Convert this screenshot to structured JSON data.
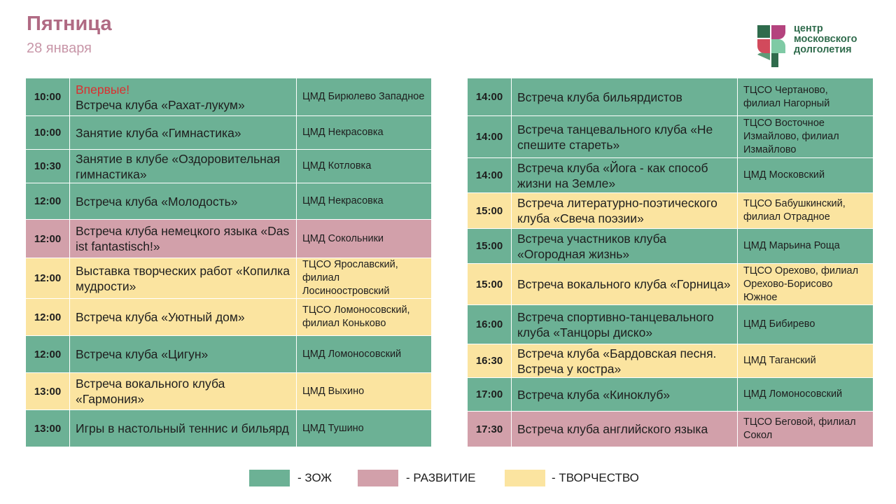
{
  "header": {
    "day": "Пятница",
    "date": "28 января"
  },
  "logo": {
    "line1": "центр",
    "line2": "московского",
    "line3": "долголетия"
  },
  "colors": {
    "zozh": "#6cb195",
    "razv": "#d2a0aa",
    "tvor": "#fbe4a0"
  },
  "left_rows": [
    {
      "time": "10:00",
      "badge": "Впервые!",
      "title": "Встреча клуба «Рахат-лукум»",
      "place": "ЦМД Бирюлево Западное",
      "cat": "zozh"
    },
    {
      "time": "10:00",
      "title": "Занятие клуба «Гимнастика»",
      "place": "ЦМД Некрасовка",
      "cat": "zozh"
    },
    {
      "time": "10:30",
      "title": "Занятие  в клубе «Оздоровительная гимнастика»",
      "place": "ЦМД Котловка",
      "cat": "zozh"
    },
    {
      "time": "12:00",
      "title": "Встреча клуба «Молодость»",
      "place": "ЦМД Некрасовка",
      "cat": "zozh"
    },
    {
      "time": "12:00",
      "title": "Встреча клуба немецкого языка «Das ist fantastisch!»",
      "place": "ЦМД Сокольники",
      "cat": "razv"
    },
    {
      "time": "12:00",
      "title": "Выставка творческих работ «Копилка мудрости»",
      "place": "ТЦСО Ярославский, филиал Лосиноостровский",
      "cat": "tvor"
    },
    {
      "time": "12:00",
      "title": "Встреча клуба «Уютный дом»",
      "place": "ТЦСО Ломоносовский, филиал Коньково",
      "cat": "tvor"
    },
    {
      "time": "12:00",
      "title": "Встреча клуба «Цигун»",
      "place": "ЦМД Ломоносовский",
      "cat": "zozh"
    },
    {
      "time": "13:00",
      "title": "Встреча вокального клуба «Гармония»",
      "place": "ЦМД Выхино",
      "cat": "tvor"
    },
    {
      "time": "13:00",
      "title": "Игры в настольный теннис и бильярд",
      "place": "ЦМД Тушино",
      "cat": "zozh"
    }
  ],
  "right_rows": [
    {
      "time": "14:00",
      "title": "Встреча клуба бильярдистов",
      "place": "ТЦСО Чертаново, филиал Нагорный",
      "cat": "zozh"
    },
    {
      "time": "14:00",
      "title": "Встреча танцевального клуба «Не спешите стареть»",
      "place": "ТЦСО Восточное Измайлово, филиал Измайлово",
      "cat": "zozh"
    },
    {
      "time": "14:00",
      "title": "Встреча клуба «Йога - как способ жизни на Земле»",
      "place": "ЦМД Московский",
      "cat": "zozh"
    },
    {
      "time": "15:00",
      "title": "Встреча литературно-поэтического клуба «Свеча поэзии»",
      "place": "ТЦСО Бабушкинский, филиал Отрадное",
      "cat": "tvor"
    },
    {
      "time": "15:00",
      "title": "Встреча участников клуба «Огородная жизнь»",
      "place": "ЦМД Марьина Роща",
      "cat": "zozh"
    },
    {
      "time": "15:00",
      "title": "Встреча вокального клуба «Горница»",
      "place": "ТЦСО Орехово, филиал Орехово-Борисово Южное",
      "cat": "tvor"
    },
    {
      "time": "16:00",
      "title": "Встреча спортивно-танцевального клуба «Танцоры диско»",
      "place": "ЦМД Бибирево",
      "cat": "zozh"
    },
    {
      "time": "16:30",
      "title": "Встреча клуба «Бардовская песня. Встреча у костра»",
      "place": "ЦМД Таганский",
      "cat": "tvor"
    },
    {
      "time": "17:00",
      "title": "Встреча клуба «Киноклуб»",
      "place": "ЦМД Ломоносовский",
      "cat": "zozh"
    },
    {
      "time": "17:30",
      "title": "Встреча клуба английского языка",
      "place": "ТЦСО Беговой, филиал Сокол",
      "cat": "razv"
    }
  ],
  "legend": [
    {
      "cat": "zozh",
      "label": "- ЗОЖ"
    },
    {
      "cat": "razv",
      "label": "- РАЗВИТИЕ"
    },
    {
      "cat": "tvor",
      "label": "- ТВОРЧЕСТВО"
    }
  ]
}
